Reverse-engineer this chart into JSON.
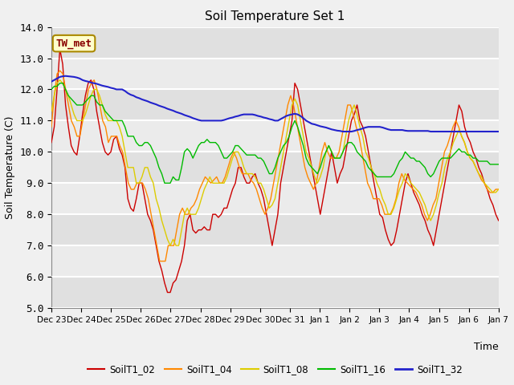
{
  "title": "Soil Temperature Set 1",
  "xlabel": "Time",
  "ylabel": "Soil Temperature (C)",
  "ylim": [
    5.0,
    14.0
  ],
  "yticks": [
    5.0,
    6.0,
    7.0,
    8.0,
    9.0,
    10.0,
    11.0,
    12.0,
    13.0,
    14.0
  ],
  "xtick_labels": [
    "Dec 23",
    "Dec 24",
    "Dec 25",
    "Dec 26",
    "Dec 27",
    "Dec 28",
    "Dec 29",
    "Dec 30",
    "Dec 31",
    "Jan 1",
    "Jan 2",
    "Jan 3",
    "Jan 4",
    "Jan 5",
    "Jan 6",
    "Jan 7"
  ],
  "annotation_label": "TW_met",
  "colors": {
    "SoilT1_02": "#cc0000",
    "SoilT1_04": "#ff8800",
    "SoilT1_08": "#ddcc00",
    "SoilT1_16": "#00bb00",
    "SoilT1_32": "#2222cc"
  },
  "fig_facecolor": "#f0f0f0",
  "plot_facecolor": "#e8e8e8",
  "grid_color": "#ffffff",
  "band_colors": [
    "#e0e0e0",
    "#ebebeb"
  ],
  "SoilT1_02": [
    10.3,
    10.8,
    12.0,
    13.3,
    12.8,
    11.5,
    10.8,
    10.2,
    10.0,
    9.9,
    10.5,
    11.2,
    11.8,
    12.2,
    12.3,
    12.0,
    11.3,
    10.8,
    10.3,
    10.0,
    9.9,
    10.0,
    10.4,
    10.5,
    10.1,
    9.9,
    9.5,
    8.5,
    8.2,
    8.1,
    8.5,
    9.0,
    9.0,
    8.5,
    8.0,
    7.8,
    7.5,
    7.0,
    6.5,
    6.2,
    5.8,
    5.5,
    5.5,
    5.8,
    5.9,
    6.2,
    6.5,
    7.0,
    7.8,
    8.0,
    7.5,
    7.4,
    7.5,
    7.5,
    7.6,
    7.5,
    7.5,
    8.0,
    8.0,
    7.9,
    8.0,
    8.2,
    8.2,
    8.5,
    8.8,
    9.0,
    9.5,
    9.5,
    9.2,
    9.0,
    9.0,
    9.2,
    9.3,
    9.0,
    8.8,
    8.5,
    8.0,
    7.5,
    7.0,
    7.5,
    8.0,
    9.0,
    9.5,
    10.0,
    10.5,
    11.0,
    12.2,
    12.0,
    11.5,
    11.0,
    10.5,
    10.0,
    9.5,
    9.0,
    8.5,
    8.0,
    8.5,
    9.0,
    9.5,
    10.0,
    9.5,
    9.0,
    9.3,
    9.5,
    10.0,
    10.5,
    11.0,
    11.2,
    11.5,
    11.0,
    10.8,
    10.5,
    10.0,
    9.5,
    9.0,
    8.5,
    8.0,
    7.9,
    7.5,
    7.2,
    7.0,
    7.1,
    7.5,
    8.0,
    8.5,
    9.0,
    9.3,
    9.0,
    8.7,
    8.5,
    8.3,
    8.0,
    7.8,
    7.5,
    7.3,
    7.0,
    7.5,
    8.0,
    8.5,
    9.0,
    9.5,
    10.0,
    10.5,
    11.0,
    11.5,
    11.3,
    10.8,
    10.5,
    10.3,
    10.0,
    9.8,
    9.5,
    9.3,
    9.0,
    8.8,
    8.5,
    8.3,
    8.0,
    7.8
  ],
  "SoilT1_04": [
    10.8,
    11.8,
    12.5,
    12.6,
    12.5,
    12.0,
    11.5,
    11.0,
    10.8,
    10.5,
    10.5,
    11.0,
    11.5,
    12.0,
    12.2,
    12.3,
    12.0,
    11.5,
    11.0,
    10.8,
    10.3,
    10.5,
    10.5,
    10.5,
    10.2,
    10.0,
    9.5,
    9.0,
    8.8,
    8.8,
    9.0,
    9.0,
    9.0,
    8.8,
    8.5,
    8.0,
    7.5,
    7.0,
    6.5,
    6.5,
    6.5,
    7.0,
    7.0,
    7.0,
    7.5,
    8.0,
    8.2,
    8.0,
    8.0,
    8.2,
    8.3,
    8.5,
    8.8,
    9.0,
    9.2,
    9.1,
    9.0,
    9.1,
    9.2,
    9.0,
    9.0,
    9.2,
    9.5,
    9.8,
    10.0,
    9.8,
    9.5,
    9.3,
    9.3,
    9.3,
    9.1,
    9.0,
    8.8,
    8.5,
    8.2,
    8.0,
    8.2,
    8.5,
    9.0,
    9.5,
    10.0,
    10.5,
    11.0,
    11.5,
    11.8,
    11.5,
    11.0,
    10.5,
    10.0,
    9.5,
    9.2,
    9.0,
    8.8,
    9.0,
    9.5,
    10.0,
    10.3,
    10.0,
    9.8,
    9.8,
    9.8,
    10.0,
    10.5,
    11.0,
    11.5,
    11.5,
    11.2,
    10.8,
    10.5,
    10.0,
    9.5,
    9.0,
    8.8,
    8.5,
    8.5,
    8.5,
    8.3,
    8.0,
    8.0,
    8.0,
    8.2,
    8.5,
    9.0,
    9.3,
    9.1,
    9.0,
    8.9,
    8.8,
    8.7,
    8.5,
    8.3,
    8.0,
    7.8,
    8.0,
    8.3,
    8.5,
    9.0,
    9.5,
    10.0,
    10.2,
    10.5,
    10.8,
    11.0,
    10.8,
    10.5,
    10.3,
    10.0,
    9.8,
    9.7,
    9.5,
    9.3,
    9.1,
    9.0,
    8.8,
    8.7,
    8.7,
    8.8,
    8.8
  ],
  "SoilT1_08": [
    11.3,
    11.8,
    12.2,
    12.3,
    12.2,
    12.0,
    11.8,
    11.5,
    11.2,
    11.0,
    11.0,
    11.0,
    11.2,
    11.5,
    11.8,
    12.0,
    12.0,
    11.8,
    11.5,
    11.2,
    11.0,
    11.0,
    11.0,
    11.0,
    10.8,
    10.5,
    10.0,
    9.5,
    9.5,
    9.5,
    9.0,
    9.0,
    9.2,
    9.5,
    9.5,
    9.2,
    9.0,
    8.5,
    8.2,
    7.8,
    7.5,
    7.2,
    7.0,
    7.2,
    7.0,
    7.0,
    7.5,
    8.0,
    8.2,
    8.0,
    8.0,
    8.0,
    8.2,
    8.5,
    8.8,
    9.0,
    9.2,
    9.0,
    9.0,
    9.0,
    9.0,
    9.0,
    9.2,
    9.5,
    9.8,
    10.0,
    10.0,
    9.8,
    9.5,
    9.3,
    9.3,
    9.3,
    9.2,
    9.0,
    9.0,
    8.8,
    8.5,
    8.2,
    8.3,
    8.5,
    9.0,
    9.5,
    10.0,
    10.5,
    11.0,
    11.5,
    11.7,
    11.5,
    11.0,
    10.5,
    10.0,
    9.8,
    9.5,
    9.2,
    9.0,
    9.2,
    9.5,
    10.0,
    10.2,
    10.0,
    9.8,
    9.8,
    9.8,
    10.0,
    10.5,
    11.0,
    11.3,
    11.5,
    11.2,
    10.8,
    10.5,
    10.0,
    9.8,
    9.5,
    9.3,
    9.0,
    8.8,
    8.5,
    8.3,
    8.0,
    8.0,
    8.2,
    8.5,
    8.8,
    9.0,
    9.3,
    9.2,
    9.0,
    8.9,
    8.8,
    8.7,
    8.5,
    8.3,
    8.0,
    7.8,
    8.0,
    8.3,
    8.7,
    9.0,
    9.5,
    9.8,
    10.0,
    10.3,
    10.5,
    10.7,
    10.5,
    10.3,
    10.0,
    9.8,
    9.7,
    9.5,
    9.3,
    9.2,
    9.0,
    8.9,
    8.8,
    8.7,
    8.7,
    8.8
  ],
  "SoilT1_16": [
    12.0,
    12.1,
    12.1,
    12.2,
    12.2,
    12.0,
    11.8,
    11.7,
    11.6,
    11.5,
    11.5,
    11.5,
    11.6,
    11.7,
    11.8,
    11.8,
    11.6,
    11.5,
    11.5,
    11.3,
    11.2,
    11.1,
    11.0,
    11.0,
    11.0,
    11.0,
    10.8,
    10.5,
    10.5,
    10.5,
    10.3,
    10.2,
    10.2,
    10.3,
    10.3,
    10.2,
    10.0,
    9.8,
    9.5,
    9.3,
    9.0,
    9.0,
    9.0,
    9.2,
    9.1,
    9.1,
    9.5,
    10.0,
    10.1,
    10.0,
    9.8,
    10.0,
    10.2,
    10.3,
    10.3,
    10.4,
    10.3,
    10.3,
    10.3,
    10.2,
    10.0,
    9.8,
    9.8,
    9.9,
    10.0,
    10.2,
    10.2,
    10.1,
    10.0,
    9.9,
    9.9,
    9.9,
    9.9,
    9.8,
    9.8,
    9.7,
    9.5,
    9.3,
    9.3,
    9.5,
    9.8,
    10.0,
    10.2,
    10.3,
    10.5,
    10.8,
    11.0,
    10.8,
    10.5,
    10.2,
    9.8,
    9.6,
    9.5,
    9.4,
    9.3,
    9.5,
    9.8,
    10.0,
    10.2,
    10.0,
    9.8,
    9.8,
    9.8,
    10.0,
    10.2,
    10.3,
    10.3,
    10.2,
    10.0,
    9.9,
    9.8,
    9.7,
    9.5,
    9.4,
    9.3,
    9.2,
    9.2,
    9.2,
    9.2,
    9.2,
    9.2,
    9.3,
    9.5,
    9.7,
    9.8,
    10.0,
    9.9,
    9.8,
    9.8,
    9.7,
    9.7,
    9.6,
    9.5,
    9.3,
    9.2,
    9.3,
    9.5,
    9.7,
    9.8,
    9.8,
    9.8,
    9.8,
    9.9,
    10.0,
    10.1,
    10.0,
    10.0,
    9.9,
    9.9,
    9.8,
    9.8,
    9.7,
    9.7,
    9.7,
    9.7,
    9.6,
    9.6,
    9.6,
    9.6
  ],
  "SoilT1_32": [
    12.25,
    12.3,
    12.35,
    12.4,
    12.42,
    12.43,
    12.42,
    12.41,
    12.4,
    12.38,
    12.35,
    12.3,
    12.27,
    12.25,
    12.22,
    12.2,
    12.18,
    12.15,
    12.12,
    12.1,
    12.08,
    12.05,
    12.03,
    12.0,
    12.0,
    12.0,
    11.95,
    11.88,
    11.83,
    11.8,
    11.75,
    11.72,
    11.68,
    11.65,
    11.62,
    11.58,
    11.55,
    11.52,
    11.48,
    11.45,
    11.42,
    11.38,
    11.35,
    11.32,
    11.28,
    11.25,
    11.22,
    11.18,
    11.15,
    11.12,
    11.08,
    11.05,
    11.02,
    11.0,
    11.0,
    11.0,
    11.0,
    11.0,
    11.0,
    11.0,
    11.0,
    11.02,
    11.05,
    11.08,
    11.1,
    11.13,
    11.15,
    11.18,
    11.2,
    11.2,
    11.2,
    11.2,
    11.18,
    11.15,
    11.13,
    11.1,
    11.08,
    11.05,
    11.03,
    11.0,
    11.0,
    11.05,
    11.1,
    11.15,
    11.18,
    11.2,
    11.22,
    11.2,
    11.15,
    11.08,
    11.0,
    10.95,
    10.9,
    10.88,
    10.85,
    10.82,
    10.8,
    10.78,
    10.75,
    10.72,
    10.7,
    10.68,
    10.67,
    10.65,
    10.65,
    10.65,
    10.65,
    10.67,
    10.7,
    10.72,
    10.75,
    10.78,
    10.8,
    10.8,
    10.8,
    10.8,
    10.8,
    10.78,
    10.75,
    10.72,
    10.7,
    10.7,
    10.7,
    10.7,
    10.7,
    10.68,
    10.67,
    10.67,
    10.67,
    10.67,
    10.67,
    10.67,
    10.67,
    10.67,
    10.65,
    10.65,
    10.65,
    10.65,
    10.65,
    10.65,
    10.65,
    10.65,
    10.65,
    10.65,
    10.65,
    10.65,
    10.65,
    10.65,
    10.65,
    10.65,
    10.65,
    10.65,
    10.65,
    10.65,
    10.65,
    10.65,
    10.65,
    10.65,
    10.65
  ]
}
